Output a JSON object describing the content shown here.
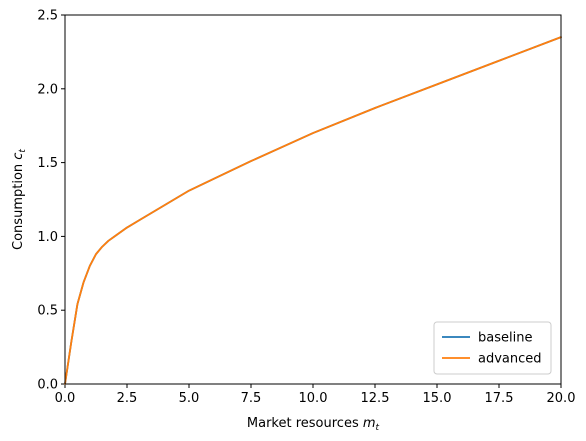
{
  "chart_data": {
    "type": "line",
    "xlabel": "Market resources",
    "xlabel_sub": "m",
    "xlabel_sub2": "t",
    "ylabel": "Consumption",
    "ylabel_sub": "c",
    "ylabel_sub2": "t",
    "xlim": [
      0.0,
      20.0
    ],
    "ylim": [
      0.0,
      2.5
    ],
    "xticks": [
      "0.0",
      "2.5",
      "5.0",
      "7.5",
      "10.0",
      "12.5",
      "15.0",
      "17.5",
      "20.0"
    ],
    "yticks": [
      "0.0",
      "0.5",
      "1.0",
      "1.5",
      "2.0",
      "2.5"
    ],
    "legend_position": "lower-right",
    "grid": false,
    "x": [
      0.0,
      0.25,
      0.5,
      0.75,
      1.0,
      1.25,
      1.5,
      1.75,
      2.0,
      2.5,
      3.0,
      4.0,
      5.0,
      6.0,
      7.5,
      10.0,
      12.5,
      15.0,
      17.5,
      20.0
    ],
    "series": [
      {
        "name": "baseline",
        "color": "#1f77b4",
        "values": [
          0.0,
          0.28,
          0.54,
          0.69,
          0.8,
          0.88,
          0.93,
          0.97,
          1.0,
          1.06,
          1.11,
          1.21,
          1.31,
          1.39,
          1.51,
          1.7,
          1.87,
          2.03,
          2.19,
          2.35
        ]
      },
      {
        "name": "advanced",
        "color": "#ff7f0e",
        "values": [
          0.0,
          0.28,
          0.54,
          0.69,
          0.8,
          0.88,
          0.93,
          0.97,
          1.0,
          1.06,
          1.11,
          1.21,
          1.31,
          1.39,
          1.51,
          1.7,
          1.87,
          2.03,
          2.19,
          2.35
        ]
      }
    ]
  }
}
